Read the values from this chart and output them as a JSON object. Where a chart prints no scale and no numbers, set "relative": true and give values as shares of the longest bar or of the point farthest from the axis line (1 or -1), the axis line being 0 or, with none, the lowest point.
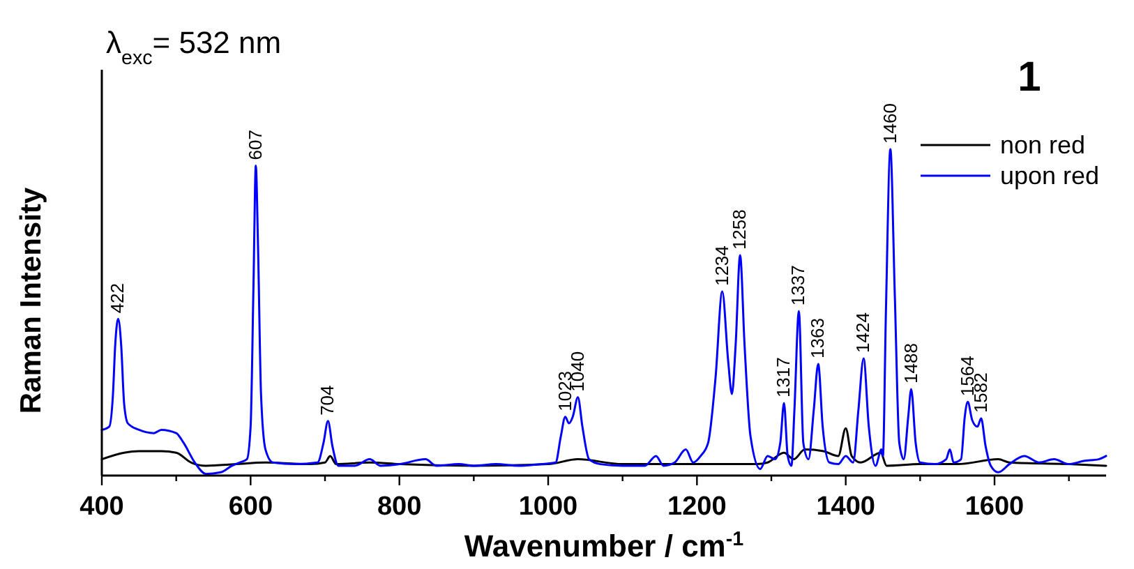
{
  "chart_data": {
    "type": "line",
    "relative": true,
    "xlabel": "Wavenumber / cm$^{-1}$",
    "ylabel": "Raman Intensity",
    "xlim": [
      400,
      1750
    ],
    "xticks": [
      400,
      {
        "value": 500,
        "label": null
      },
      600,
      {
        "value": 700,
        "label": null
      },
      800,
      {
        "value": 900,
        "label": null
      },
      1000,
      {
        "value": 1100,
        "label": null
      },
      1200,
      {
        "value": 1300,
        "label": null
      },
      1400,
      {
        "value": 1500,
        "label": null
      },
      1600,
      {
        "value": 1700,
        "label": null
      }
    ],
    "legend": "top right",
    "grid": false,
    "marker": "none",
    "line_style": "solid",
    "tick_labels": "x",
    "series": [
      {
        "name": "non red",
        "color": "#000000",
        "x": [
          400,
          430,
          450,
          480,
          500,
          520,
          540,
          580,
          620,
          680,
          700,
          707,
          715,
          760,
          800,
          900,
          1000,
          1040,
          1100,
          1200,
          1280,
          1295,
          1317,
          1330,
          1345,
          1370,
          1390,
          1400,
          1408,
          1420,
          1447,
          1455,
          1500,
          1550,
          1605,
          1620,
          1700,
          1750
        ],
        "values": [
          0.05,
          0.07,
          0.075,
          0.075,
          0.07,
          0.04,
          0.03,
          0.035,
          0.04,
          0.035,
          0.04,
          0.06,
          0.035,
          0.04,
          0.035,
          0.03,
          0.035,
          0.05,
          0.035,
          0.035,
          0.035,
          0.04,
          0.07,
          0.05,
          0.08,
          0.075,
          0.06,
          0.145,
          0.06,
          0.04,
          0.07,
          0.03,
          0.035,
          0.035,
          0.05,
          0.04,
          0.035,
          0.03
        ]
      },
      {
        "name": "upon red",
        "color": "#0000ff",
        "x": [
          400,
          410,
          415,
          418,
          422,
          426,
          430,
          435,
          450,
          470,
          480,
          500,
          510,
          525,
          540,
          560,
          575,
          585,
          595,
          600,
          604,
          607,
          610,
          614,
          620,
          630,
          660,
          690,
          698,
          704,
          710,
          718,
          740,
          760,
          775,
          800,
          835,
          850,
          880,
          900,
          930,
          960,
          990,
          1010,
          1017,
          1023,
          1028,
          1033,
          1040,
          1046,
          1055,
          1070,
          1100,
          1130,
          1145,
          1155,
          1170,
          1185,
          1195,
          1205,
          1215,
          1225,
          1234,
          1242,
          1247,
          1252,
          1258,
          1264,
          1272,
          1285,
          1295,
          1305,
          1312,
          1317,
          1322,
          1327,
          1331,
          1337,
          1343,
          1350,
          1357,
          1363,
          1369,
          1378,
          1390,
          1400,
          1410,
          1417,
          1424,
          1431,
          1440,
          1448,
          1450,
          1454,
          1460,
          1466,
          1472,
          1478,
          1484,
          1488,
          1494,
          1500,
          1520,
          1535,
          1540,
          1545,
          1555,
          1560,
          1564,
          1570,
          1577,
          1582,
          1588,
          1595,
          1605,
          1620,
          1640,
          1660,
          1680,
          1700,
          1720,
          1740,
          1750
        ],
        "values": [
          0.14,
          0.15,
          0.25,
          0.4,
          0.48,
          0.4,
          0.22,
          0.16,
          0.14,
          0.13,
          0.14,
          0.13,
          0.1,
          0.04,
          0.005,
          0.01,
          0.03,
          0.04,
          0.05,
          0.15,
          0.6,
          0.95,
          0.7,
          0.25,
          0.08,
          0.04,
          0.035,
          0.04,
          0.1,
          0.167,
          0.09,
          0.03,
          0.03,
          0.05,
          0.03,
          0.035,
          0.05,
          0.03,
          0.035,
          0.03,
          0.035,
          0.03,
          0.035,
          0.04,
          0.12,
          0.18,
          0.16,
          0.18,
          0.24,
          0.15,
          0.05,
          0.035,
          0.03,
          0.03,
          0.06,
          0.03,
          0.04,
          0.08,
          0.04,
          0.06,
          0.1,
          0.3,
          0.564,
          0.35,
          0.25,
          0.4,
          0.675,
          0.4,
          0.12,
          0.02,
          0.06,
          0.05,
          0.1,
          0.222,
          0.06,
          0.03,
          0.2,
          0.504,
          0.1,
          0.05,
          0.2,
          0.342,
          0.15,
          0.04,
          0.035,
          0.06,
          0.04,
          0.2,
          0.359,
          0.15,
          0.03,
          0.08,
          0.06,
          0.5,
          1,
          0.55,
          0.1,
          0.05,
          0.18,
          0.265,
          0.1,
          0.04,
          0.035,
          0.05,
          0.08,
          0.04,
          0.05,
          0.18,
          0.226,
          0.17,
          0.15,
          0.175,
          0.09,
          0.03,
          0.01,
          0.035,
          0.06,
          0.04,
          0.05,
          0.035,
          0.045,
          0.05,
          0.06
        ]
      }
    ],
    "annotations": [
      "λ$_{exc}$= 532 nm",
      "1",
      {
        "text": "422",
        "x": 422,
        "y": 0.48
      },
      {
        "text": "607",
        "x": 607,
        "y": 0.95
      },
      {
        "text": "704",
        "x": 704,
        "y": 0.167
      },
      {
        "text": "1023",
        "x": 1023,
        "y": 0.18
      },
      {
        "text": "1040",
        "x": 1040,
        "y": 0.24
      },
      {
        "text": "1234",
        "x": 1234,
        "y": 0.564
      },
      {
        "text": "1258",
        "x": 1258,
        "y": 0.675
      },
      {
        "text": "1317",
        "x": 1317,
        "y": 0.222
      },
      {
        "text": "1337",
        "x": 1337,
        "y": 0.504
      },
      {
        "text": "1363",
        "x": 1363,
        "y": 0.342
      },
      {
        "text": "1424",
        "x": 1424,
        "y": 0.359
      },
      {
        "text": "1460",
        "x": 1460,
        "y": 1
      },
      {
        "text": "1488",
        "x": 1488,
        "y": 0.265
      },
      {
        "text": "1564",
        "x": 1564,
        "y": 0.226
      },
      {
        "text": "1582",
        "x": 1582,
        "y": 0.175
      }
    ]
  }
}
